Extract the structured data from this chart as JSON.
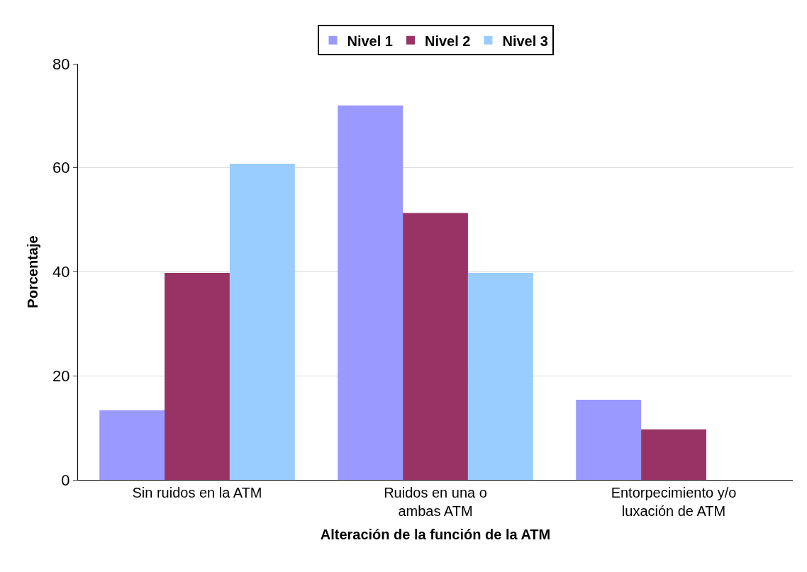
{
  "chart_data": {
    "type": "bar",
    "xlabel": "Alteración de la función de la ATM",
    "ylabel": "Porcentaje",
    "categories": [
      "Sin ruidos en la ATM",
      "Ruidos en una o ambas ATM",
      "Entorpecimiento y/o luxación de ATM"
    ],
    "series": [
      {
        "name": "Nivel 1",
        "color": "#9999ff",
        "values": [
          13.4,
          72,
          15.4
        ]
      },
      {
        "name": "Nivel 2",
        "color": "#993366",
        "values": [
          39.8,
          51.3,
          9.7
        ]
      },
      {
        "name": "Nivel 3",
        "color": "#99ccff",
        "values": [
          60.8,
          39.8,
          0
        ]
      }
    ],
    "ylim": [
      0,
      80
    ],
    "yticks": [
      0,
      20,
      40,
      60,
      80
    ],
    "grid": "y",
    "legend": "top"
  }
}
